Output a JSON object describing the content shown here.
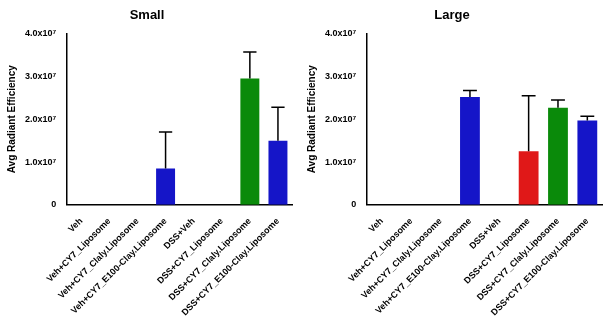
{
  "chart_data": [
    {
      "type": "bar",
      "title": "Small",
      "y_label": "Avg Radiant Efficiency",
      "categories": [
        "Veh",
        "Veh+CY7_Liposome",
        "Veh+CY7_Claly.Liposome",
        "Veh+CY7_E100-Clay.Liposome",
        "DSS+Veh",
        "DSS+CY7_Liposome",
        "DSS+CY7_Claly.Liposome",
        "DSS+CY7_E100-Clay.Liposome"
      ],
      "values": [
        0,
        0,
        0,
        8500000,
        0,
        0,
        29500000,
        15000000
      ],
      "errors": [
        0,
        0,
        0,
        8500000,
        0,
        0,
        6200000,
        7800000
      ],
      "colors": [
        "#1515c8",
        "#1515c8",
        "#1515c8",
        "#1515c8",
        "#1515c8",
        "#1515c8",
        "#0a8a0a",
        "#1515c8"
      ],
      "ylim": [
        0,
        40000000
      ],
      "yticks": [
        0,
        {
          "value": 10000000,
          "label": "1.0x10⁷"
        },
        {
          "value": 20000000,
          "label": "2.0x10⁷"
        },
        {
          "value": 30000000,
          "label": "3.0x10⁷"
        },
        {
          "value": 40000000,
          "label": "4.0x10⁷"
        }
      ],
      "grid": false
    },
    {
      "type": "bar",
      "title": "Large",
      "y_label": "Avg Radiant Efficiency",
      "categories": [
        "Veh",
        "Veh+CY7_Liposome",
        "Veh+CY7_Claly.Liposome",
        "Veh+CY7_E100-Clay.Liposome",
        "DSS+Veh",
        "DSS+CY7_Liposome",
        "DSS+CY7_Claly.Liposome",
        "DSS+CY7_E100-Clay.Liposome"
      ],
      "values": [
        0,
        0,
        0,
        25200000,
        0,
        12500000,
        22700000,
        19700000
      ],
      "errors": [
        0,
        0,
        0,
        1500000,
        0,
        13000000,
        1800000,
        1000000
      ],
      "colors": [
        "#1515c8",
        "#1515c8",
        "#1515c8",
        "#1515c8",
        "#1515c8",
        "#e01818",
        "#0a8a0a",
        "#1515c8"
      ],
      "ylim": [
        0,
        40000000
      ],
      "yticks": [
        0,
        {
          "value": 10000000,
          "label": "1.0x10⁷"
        },
        {
          "value": 20000000,
          "label": "2.0x10⁷"
        },
        {
          "value": 30000000,
          "label": "3.0x10⁷"
        },
        {
          "value": 40000000,
          "label": "4.0x10⁷"
        }
      ],
      "grid": false
    }
  ]
}
